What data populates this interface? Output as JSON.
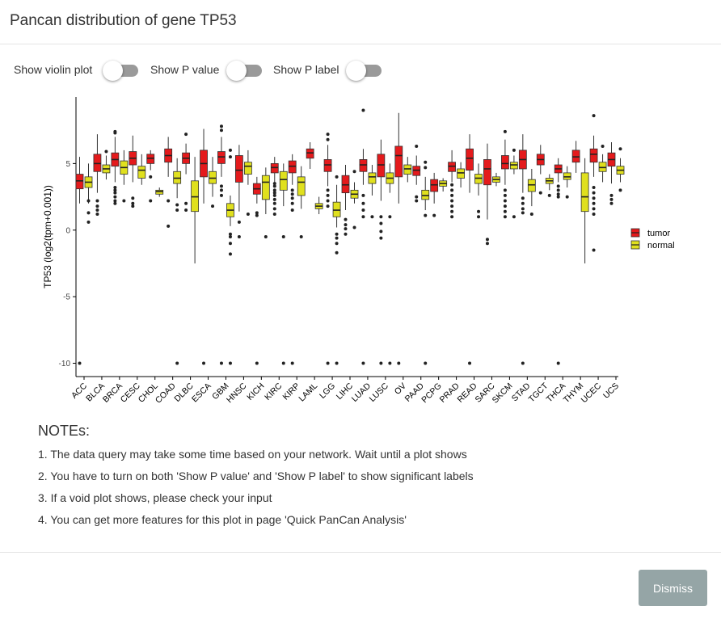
{
  "modal": {
    "title": "Pancan distribution of gene TP53"
  },
  "controls": [
    {
      "label": "Show violin plot",
      "on": false
    },
    {
      "label": "Show P value",
      "on": false
    },
    {
      "label": "Show P label",
      "on": false
    }
  ],
  "chart_data": {
    "type": "boxplot",
    "ylabel": "TP53 (log2(tpm+0.001))",
    "xlabel": "",
    "ylim": [
      -11,
      10
    ],
    "yticks": [
      -10,
      -5,
      0,
      5
    ],
    "legend_placement": "right",
    "series": [
      {
        "name": "tumor",
        "color": "#e41a1c"
      },
      {
        "name": "normal",
        "color": "#e0e01e"
      }
    ],
    "categories": [
      "ACC",
      "BLCA",
      "BRCA",
      "CESC",
      "CHOL",
      "COAD",
      "DLBC",
      "ESCA",
      "GBM",
      "HNSC",
      "KICH",
      "KIRC",
      "KIRP",
      "LAML",
      "LGG",
      "LIHC",
      "LUAD",
      "LUSC",
      "OV",
      "PAAD",
      "PCPG",
      "PRAD",
      "READ",
      "SARC",
      "SKCM",
      "STAD",
      "TGCT",
      "THCA",
      "THYM",
      "UCEC",
      "UCS"
    ],
    "boxes": [
      {
        "cat": "ACC",
        "series": "tumor",
        "q1": 3.1,
        "median": 3.7,
        "q3": 4.2,
        "whisker_low": 2.0,
        "whisker_high": 5.5,
        "outliers": [
          -10
        ]
      },
      {
        "cat": "ACC",
        "series": "normal",
        "q1": 3.2,
        "median": 3.6,
        "q3": 4.0,
        "whisker_low": 2.0,
        "whisker_high": 5.0,
        "outliers": [
          1.3,
          0.6,
          2.2
        ]
      },
      {
        "cat": "BLCA",
        "series": "tumor",
        "q1": 4.4,
        "median": 5.0,
        "q3": 5.7,
        "whisker_low": 2.8,
        "whisker_high": 7.2,
        "outliers": [
          2.2,
          1.8,
          1.5,
          1.2
        ]
      },
      {
        "cat": "BLCA",
        "series": "normal",
        "q1": 4.3,
        "median": 4.6,
        "q3": 4.9,
        "whisker_low": 3.8,
        "whisker_high": 5.6,
        "outliers": [
          5.9
        ]
      },
      {
        "cat": "BRCA",
        "series": "tumor",
        "q1": 4.8,
        "median": 5.3,
        "q3": 5.8,
        "whisker_low": 3.6,
        "whisker_high": 7.0,
        "outliers": [
          3.2,
          3.0,
          2.8,
          2.5,
          2.2,
          2.0,
          7.3,
          7.4
        ]
      },
      {
        "cat": "BRCA",
        "series": "normal",
        "q1": 4.2,
        "median": 4.7,
        "q3": 5.2,
        "whisker_low": 3.4,
        "whisker_high": 6.0,
        "outliers": [
          2.2
        ]
      },
      {
        "cat": "CESC",
        "series": "tumor",
        "q1": 4.9,
        "median": 5.4,
        "q3": 5.9,
        "whisker_low": 3.6,
        "whisker_high": 7.1,
        "outliers": [
          2.4,
          2.0,
          1.8
        ]
      },
      {
        "cat": "CESC",
        "series": "normal",
        "q1": 3.9,
        "median": 4.5,
        "q3": 4.8,
        "whisker_low": 3.4,
        "whisker_high": 5.7,
        "outliers": []
      },
      {
        "cat": "CHOL",
        "series": "tumor",
        "q1": 5.0,
        "median": 5.4,
        "q3": 5.7,
        "whisker_low": 4.5,
        "whisker_high": 6.0,
        "outliers": [
          4.0,
          2.2
        ]
      },
      {
        "cat": "CHOL",
        "series": "normal",
        "q1": 2.7,
        "median": 2.9,
        "q3": 3.0,
        "whisker_low": 2.5,
        "whisker_high": 3.2,
        "outliers": []
      },
      {
        "cat": "COAD",
        "series": "tumor",
        "q1": 5.1,
        "median": 5.6,
        "q3": 6.1,
        "whisker_low": 4.0,
        "whisker_high": 7.0,
        "outliers": [
          0.3,
          2.2
        ]
      },
      {
        "cat": "COAD",
        "series": "normal",
        "q1": 3.5,
        "median": 3.9,
        "q3": 4.4,
        "whisker_low": 2.4,
        "whisker_high": 5.4,
        "outliers": [
          1.9,
          1.5,
          -10
        ]
      },
      {
        "cat": "DLBC",
        "series": "tumor",
        "q1": 5.0,
        "median": 5.4,
        "q3": 5.8,
        "whisker_low": 4.2,
        "whisker_high": 6.5,
        "outliers": [
          7.2,
          2.0,
          1.5
        ]
      },
      {
        "cat": "DLBC",
        "series": "normal",
        "q1": 1.4,
        "median": 2.5,
        "q3": 3.7,
        "whisker_low": -2.5,
        "whisker_high": 5.5,
        "outliers": []
      },
      {
        "cat": "ESCA",
        "series": "tumor",
        "q1": 4.0,
        "median": 5.0,
        "q3": 6.0,
        "whisker_low": 2.0,
        "whisker_high": 7.6,
        "outliers": [
          -10
        ]
      },
      {
        "cat": "ESCA",
        "series": "normal",
        "q1": 3.5,
        "median": 3.9,
        "q3": 4.4,
        "whisker_low": 2.5,
        "whisker_high": 5.5,
        "outliers": [
          1.8
        ]
      },
      {
        "cat": "GBM",
        "series": "tumor",
        "q1": 5.0,
        "median": 5.5,
        "q3": 5.9,
        "whisker_low": 4.0,
        "whisker_high": 7.0,
        "outliers": [
          7.5,
          7.8,
          2.6,
          3.3,
          3.0,
          -10
        ]
      },
      {
        "cat": "GBM",
        "series": "normal",
        "q1": 1.0,
        "median": 1.5,
        "q3": 2.0,
        "whisker_low": 0.3,
        "whisker_high": 2.6,
        "outliers": [
          -0.5,
          -1.0,
          -1.8,
          -0.3,
          5.5,
          6.0,
          -10
        ]
      },
      {
        "cat": "HNSC",
        "series": "tumor",
        "q1": 3.6,
        "median": 4.5,
        "q3": 5.6,
        "whisker_low": 1.4,
        "whisker_high": 6.4,
        "outliers": [
          0.6,
          -0.5
        ]
      },
      {
        "cat": "HNSC",
        "series": "normal",
        "q1": 4.2,
        "median": 4.8,
        "q3": 5.1,
        "whisker_low": 3.4,
        "whisker_high": 6.0,
        "outliers": [
          1.2
        ]
      },
      {
        "cat": "KICH",
        "series": "tumor",
        "q1": 2.7,
        "median": 3.1,
        "q3": 3.5,
        "whisker_low": 2.0,
        "whisker_high": 4.0,
        "outliers": [
          1.1,
          1.3,
          -10
        ]
      },
      {
        "cat": "KICH",
        "series": "normal",
        "q1": 2.3,
        "median": 3.6,
        "q3": 4.1,
        "whisker_low": 1.2,
        "whisker_high": 4.7,
        "outliers": [
          -0.5
        ]
      },
      {
        "cat": "KIRC",
        "series": "tumor",
        "q1": 4.3,
        "median": 4.7,
        "q3": 5.0,
        "whisker_low": 3.6,
        "whisker_high": 5.5,
        "outliers": [
          3.5,
          3.3,
          3.0,
          2.8,
          2.6,
          2.3,
          2.0,
          1.6,
          1.2
        ]
      },
      {
        "cat": "KIRC",
        "series": "normal",
        "q1": 3.0,
        "median": 3.8,
        "q3": 4.4,
        "whisker_low": 1.8,
        "whisker_high": 5.0,
        "outliers": [
          -0.5,
          -10
        ]
      },
      {
        "cat": "KIRP",
        "series": "tumor",
        "q1": 4.3,
        "median": 4.8,
        "q3": 5.2,
        "whisker_low": 3.4,
        "whisker_high": 5.7,
        "outliers": [
          3.0,
          2.7,
          2.4,
          2.0,
          1.5,
          -10
        ]
      },
      {
        "cat": "KIRP",
        "series": "normal",
        "q1": 2.6,
        "median": 3.6,
        "q3": 4.0,
        "whisker_low": 1.6,
        "whisker_high": 4.8,
        "outliers": [
          -0.5
        ]
      },
      {
        "cat": "LAML",
        "series": "tumor",
        "q1": 5.4,
        "median": 5.8,
        "q3": 6.1,
        "whisker_low": 4.6,
        "whisker_high": 6.6,
        "outliers": []
      },
      {
        "cat": "LAML",
        "series": "normal",
        "q1": 1.6,
        "median": 1.8,
        "q3": 2.0,
        "whisker_low": 1.2,
        "whisker_high": 2.5,
        "outliers": []
      },
      {
        "cat": "LGG",
        "series": "tumor",
        "q1": 4.4,
        "median": 4.9,
        "q3": 5.3,
        "whisker_low": 3.3,
        "whisker_high": 6.4,
        "outliers": [
          6.8,
          7.2,
          3.0,
          2.6,
          2.2,
          1.8,
          -10
        ]
      },
      {
        "cat": "LGG",
        "series": "normal",
        "q1": 1.0,
        "median": 1.5,
        "q3": 2.1,
        "whisker_low": 0.2,
        "whisker_high": 3.4,
        "outliers": [
          -0.3,
          -0.6,
          -1.0,
          -1.7,
          4.0,
          -10
        ]
      },
      {
        "cat": "LIHC",
        "series": "tumor",
        "q1": 2.8,
        "median": 3.4,
        "q3": 4.1,
        "whisker_low": 1.5,
        "whisker_high": 4.9,
        "outliers": [
          0.8,
          0.4,
          0.1,
          -0.3
        ]
      },
      {
        "cat": "LIHC",
        "series": "normal",
        "q1": 2.4,
        "median": 2.7,
        "q3": 3.0,
        "whisker_low": 2.0,
        "whisker_high": 3.6,
        "outliers": [
          4.4,
          0.2
        ]
      },
      {
        "cat": "LUAD",
        "series": "tumor",
        "q1": 4.4,
        "median": 4.9,
        "q3": 5.3,
        "whisker_low": 3.4,
        "whisker_high": 6.1,
        "outliers": [
          9.0,
          2.6,
          2.0,
          1.5,
          1.0,
          -10
        ]
      },
      {
        "cat": "LUAD",
        "series": "normal",
        "q1": 3.5,
        "median": 4.0,
        "q3": 4.3,
        "whisker_low": 2.6,
        "whisker_high": 4.9,
        "outliers": [
          1.0
        ]
      },
      {
        "cat": "LUSC",
        "series": "tumor",
        "q1": 4.0,
        "median": 4.9,
        "q3": 5.7,
        "whisker_low": 2.2,
        "whisker_high": 6.8,
        "outliers": [
          1.0,
          0.5,
          -0.1,
          -0.6,
          -10
        ]
      },
      {
        "cat": "LUSC",
        "series": "normal",
        "q1": 3.5,
        "median": 3.9,
        "q3": 4.3,
        "whisker_low": 2.8,
        "whisker_high": 5.0,
        "outliers": [
          1.0,
          -10
        ]
      },
      {
        "cat": "OV",
        "series": "tumor",
        "q1": 4.0,
        "median": 5.6,
        "q3": 6.3,
        "whisker_low": 2.0,
        "whisker_high": 8.8,
        "outliers": [
          -10
        ]
      },
      {
        "cat": "OV",
        "series": "normal",
        "q1": 4.2,
        "median": 4.6,
        "q3": 4.9,
        "whisker_low": 3.6,
        "whisker_high": 5.5,
        "outliers": []
      },
      {
        "cat": "PAAD",
        "series": "tumor",
        "q1": 4.1,
        "median": 4.5,
        "q3": 4.8,
        "whisker_low": 3.4,
        "whisker_high": 5.6,
        "outliers": [
          6.3,
          2.5,
          2.2
        ]
      },
      {
        "cat": "PAAD",
        "series": "normal",
        "q1": 2.3,
        "median": 2.6,
        "q3": 3.0,
        "whisker_low": 1.5,
        "whisker_high": 4.0,
        "outliers": [
          1.1,
          4.7,
          5.1,
          -10
        ]
      },
      {
        "cat": "PCPG",
        "series": "tumor",
        "q1": 2.9,
        "median": 3.4,
        "q3": 3.8,
        "whisker_low": 2.0,
        "whisker_high": 4.3,
        "outliers": [
          1.1
        ]
      },
      {
        "cat": "PCPG",
        "series": "normal",
        "q1": 3.3,
        "median": 3.5,
        "q3": 3.7,
        "whisker_low": 2.9,
        "whisker_high": 3.9,
        "outliers": []
      },
      {
        "cat": "PRAD",
        "series": "tumor",
        "q1": 4.4,
        "median": 4.8,
        "q3": 5.1,
        "whisker_low": 3.6,
        "whisker_high": 6.0,
        "outliers": [
          3.4,
          3.0,
          2.6,
          2.2,
          1.8,
          1.4,
          1.0
        ]
      },
      {
        "cat": "PRAD",
        "series": "normal",
        "q1": 3.9,
        "median": 4.3,
        "q3": 4.6,
        "whisker_low": 3.2,
        "whisker_high": 5.1,
        "outliers": []
      },
      {
        "cat": "READ",
        "series": "tumor",
        "q1": 4.5,
        "median": 5.4,
        "q3": 6.1,
        "whisker_low": 2.8,
        "whisker_high": 7.2,
        "outliers": [
          -10
        ]
      },
      {
        "cat": "READ",
        "series": "normal",
        "q1": 3.5,
        "median": 3.9,
        "q3": 4.2,
        "whisker_low": 2.6,
        "whisker_high": 5.0,
        "outliers": [
          1.4,
          1.0
        ]
      },
      {
        "cat": "SARC",
        "series": "tumor",
        "q1": 3.4,
        "median": 4.6,
        "q3": 5.3,
        "whisker_low": 0.8,
        "whisker_high": 6.5,
        "outliers": [
          -0.7,
          -1.0
        ]
      },
      {
        "cat": "SARC",
        "series": "normal",
        "q1": 3.6,
        "median": 3.8,
        "q3": 4.0,
        "whisker_low": 3.3,
        "whisker_high": 4.3,
        "outliers": []
      },
      {
        "cat": "SKCM",
        "series": "tumor",
        "q1": 4.6,
        "median": 5.0,
        "q3": 5.6,
        "whisker_low": 3.4,
        "whisker_high": 6.8,
        "outliers": [
          7.4,
          3.0,
          2.6,
          2.2,
          1.8,
          1.4,
          1.0
        ]
      },
      {
        "cat": "SKCM",
        "series": "normal",
        "q1": 4.6,
        "median": 4.9,
        "q3": 5.1,
        "whisker_low": 4.2,
        "whisker_high": 5.6,
        "outliers": [
          6.0,
          1.0
        ]
      },
      {
        "cat": "STAD",
        "series": "tumor",
        "q1": 4.6,
        "median": 5.3,
        "q3": 6.0,
        "whisker_low": 2.8,
        "whisker_high": 7.2,
        "outliers": [
          2.4,
          2.0,
          1.6,
          1.3,
          -10
        ]
      },
      {
        "cat": "STAD",
        "series": "normal",
        "q1": 2.9,
        "median": 3.4,
        "q3": 3.8,
        "whisker_low": 1.8,
        "whisker_high": 4.6,
        "outliers": [
          1.2
        ]
      },
      {
        "cat": "TGCT",
        "series": "tumor",
        "q1": 4.9,
        "median": 5.3,
        "q3": 5.7,
        "whisker_low": 4.2,
        "whisker_high": 6.4,
        "outliers": [
          2.8
        ]
      },
      {
        "cat": "TGCT",
        "series": "normal",
        "q1": 3.5,
        "median": 3.7,
        "q3": 3.9,
        "whisker_low": 3.0,
        "whisker_high": 4.2,
        "outliers": [
          2.6
        ]
      },
      {
        "cat": "THCA",
        "series": "tumor",
        "q1": 4.3,
        "median": 4.6,
        "q3": 4.9,
        "whisker_low": 3.6,
        "whisker_high": 5.4,
        "outliers": [
          3.3,
          3.0,
          2.7,
          2.5,
          -10
        ]
      },
      {
        "cat": "THCA",
        "series": "normal",
        "q1": 3.8,
        "median": 4.0,
        "q3": 4.3,
        "whisker_low": 3.2,
        "whisker_high": 4.8,
        "outliers": [
          2.5
        ]
      },
      {
        "cat": "THYM",
        "series": "tumor",
        "q1": 5.1,
        "median": 5.5,
        "q3": 6.0,
        "whisker_low": 4.3,
        "whisker_high": 6.7,
        "outliers": []
      },
      {
        "cat": "THYM",
        "series": "normal",
        "q1": 1.4,
        "median": 2.5,
        "q3": 4.3,
        "whisker_low": -2.5,
        "whisker_high": 5.4,
        "outliers": []
      },
      {
        "cat": "UCEC",
        "series": "tumor",
        "q1": 5.1,
        "median": 5.7,
        "q3": 6.1,
        "whisker_low": 4.0,
        "whisker_high": 7.1,
        "outliers": [
          8.6,
          3.2,
          2.8,
          2.4,
          2.0,
          1.6,
          1.2,
          -1.5
        ]
      },
      {
        "cat": "UCEC",
        "series": "normal",
        "q1": 4.4,
        "median": 4.7,
        "q3": 5.1,
        "whisker_low": 3.6,
        "whisker_high": 5.7,
        "outliers": [
          6.3
        ]
      },
      {
        "cat": "UCS",
        "series": "tumor",
        "q1": 4.8,
        "median": 5.3,
        "q3": 5.8,
        "whisker_low": 3.5,
        "whisker_high": 6.6,
        "outliers": [
          2.0,
          2.3,
          2.6
        ]
      },
      {
        "cat": "UCS",
        "series": "normal",
        "q1": 4.2,
        "median": 4.5,
        "q3": 4.8,
        "whisker_low": 3.6,
        "whisker_high": 5.4,
        "outliers": [
          6.1,
          3.0
        ]
      }
    ]
  },
  "notes": {
    "title": "NOTEs:",
    "lines": [
      "1. The data query may take some time based on your network. Wait until a plot shows",
      "2. You have to turn on both 'Show P value' and 'Show P label' to show significant labels",
      "3. If a void plot shows, please check your input",
      "4. You can get more features for this plot in page 'Quick PanCan Analysis'"
    ]
  },
  "footer": {
    "dismiss_label": "Dismiss"
  }
}
